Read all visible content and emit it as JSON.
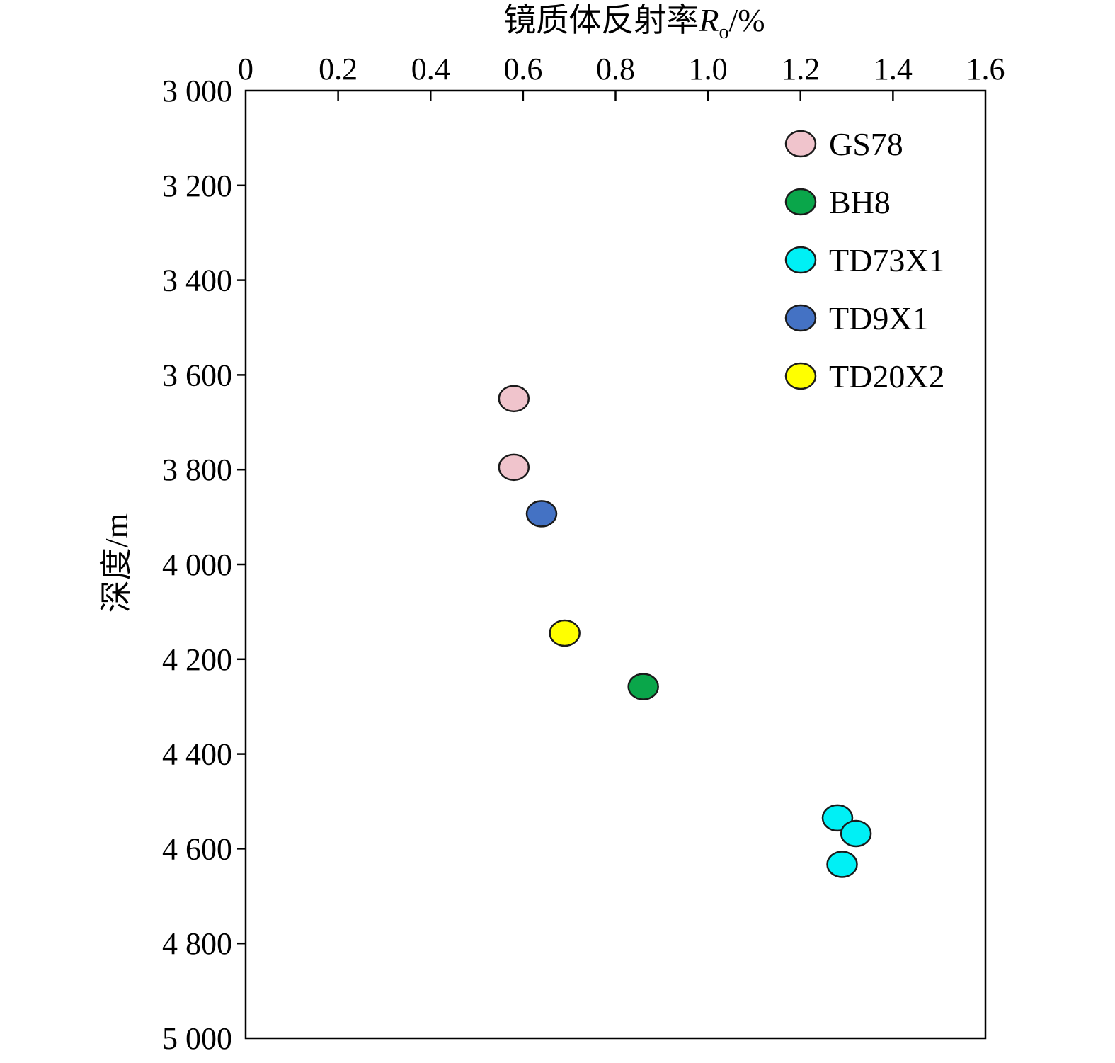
{
  "chart_data": {
    "type": "scatter",
    "title": "",
    "xlabel_main": "镜质体反射率",
    "xlabel_symbol": "R",
    "xlabel_subscript": "o",
    "xlabel_unit": "/%",
    "ylabel": "深度/m",
    "x_axis_position": "top",
    "y_axis_inverted": true,
    "xlim": [
      0,
      1.6
    ],
    "ylim": [
      3000,
      5000
    ],
    "x_ticks": [
      0,
      0.2,
      0.4,
      0.6,
      0.8,
      1.0,
      1.2,
      1.4,
      1.6
    ],
    "x_tick_labels": [
      "0",
      "0.2",
      "0.4",
      "0.6",
      "0.8",
      "1.0",
      "1.2",
      "1.4",
      "1.6"
    ],
    "y_ticks": [
      3000,
      3200,
      3400,
      3600,
      3800,
      4000,
      4200,
      4400,
      4600,
      4800,
      5000
    ],
    "y_tick_labels": [
      "3 000",
      "3 200",
      "3 400",
      "3 600",
      "3 800",
      "4 000",
      "4 200",
      "4 400",
      "4 600",
      "4 800",
      "5 000"
    ],
    "grid": false,
    "legend_position": "top-right",
    "series": [
      {
        "name": "GS78",
        "color": "#f0c4cc",
        "points": [
          {
            "x": 0.58,
            "y": 3650
          },
          {
            "x": 0.58,
            "y": 3795
          }
        ]
      },
      {
        "name": "BH8",
        "color": "#0aa64a",
        "points": [
          {
            "x": 0.86,
            "y": 4258
          }
        ]
      },
      {
        "name": "TD73X1",
        "color": "#00f0f5",
        "points": [
          {
            "x": 1.28,
            "y": 4535
          },
          {
            "x": 1.32,
            "y": 4568
          },
          {
            "x": 1.29,
            "y": 4633
          }
        ]
      },
      {
        "name": "TD9X1",
        "color": "#4472c4",
        "points": [
          {
            "x": 0.64,
            "y": 3893
          }
        ]
      },
      {
        "name": "TD20X2",
        "color": "#ffff00",
        "points": [
          {
            "x": 0.69,
            "y": 4145
          }
        ]
      }
    ]
  }
}
